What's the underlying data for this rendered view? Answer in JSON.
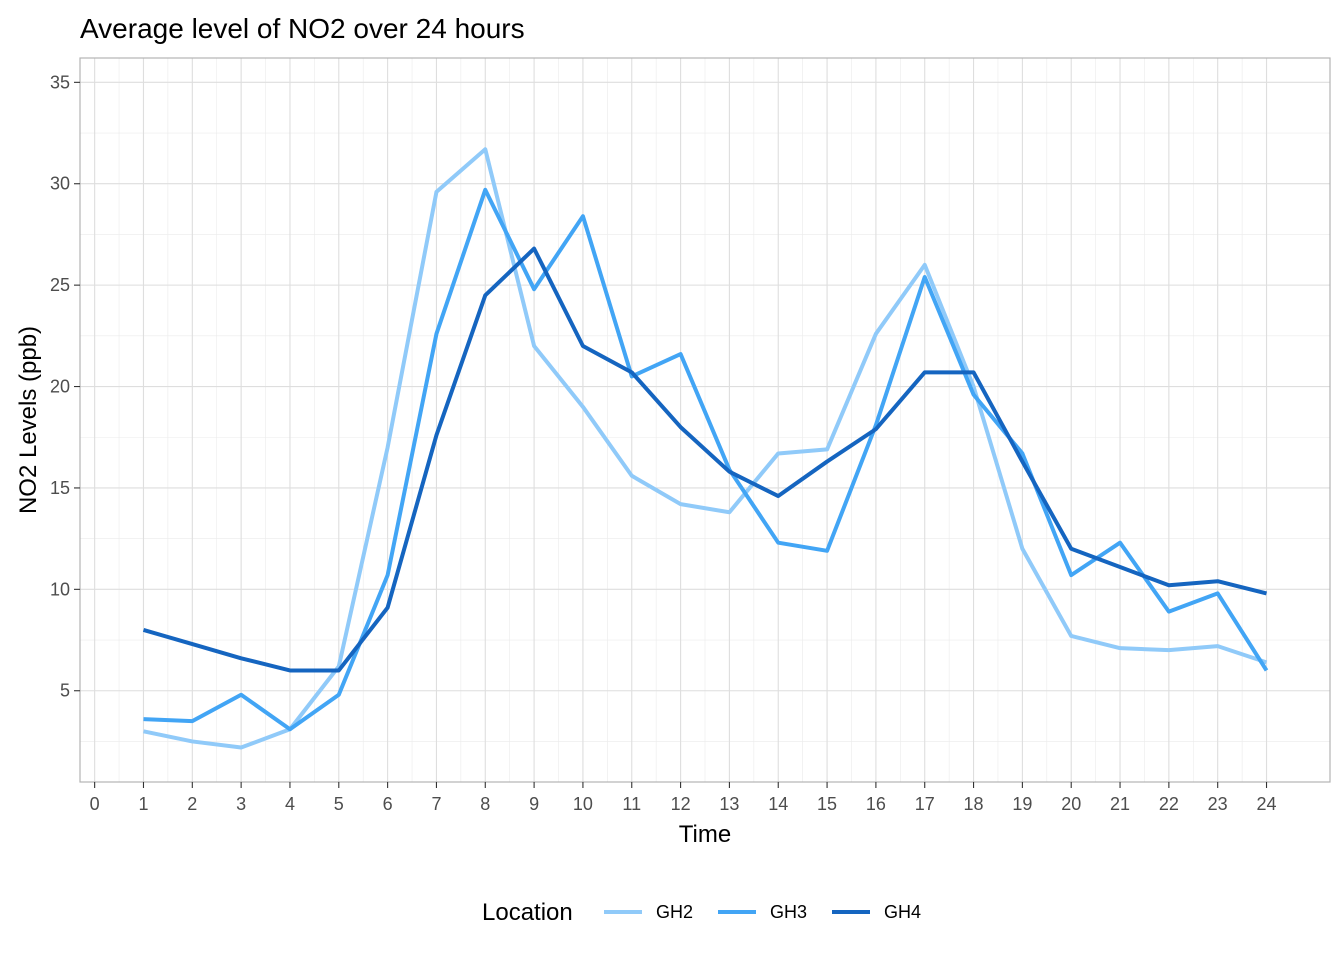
{
  "chart_data": {
    "type": "line",
    "title": "Average level of NO2 over 24 hours",
    "xlabel": "Time",
    "ylabel": "NO2 Levels (ppb)",
    "xlim": [
      -0.3,
      25.3
    ],
    "ylim": [
      0.5,
      36.2
    ],
    "x_ticks": [
      0,
      1,
      2,
      3,
      4,
      5,
      6,
      7,
      8,
      9,
      10,
      11,
      12,
      13,
      14,
      15,
      16,
      17,
      18,
      19,
      20,
      21,
      22,
      23,
      24
    ],
    "y_ticks": [
      5,
      10,
      15,
      20,
      25,
      30,
      35
    ],
    "grid": true,
    "legend": {
      "title": "Location",
      "placement": "bottom"
    },
    "x": [
      1,
      2,
      3,
      4,
      5,
      6,
      7,
      8,
      9,
      10,
      11,
      12,
      13,
      14,
      15,
      16,
      17,
      18,
      19,
      20,
      21,
      22,
      23,
      24
    ],
    "series": [
      {
        "name": "GH2",
        "color": "#90caf9",
        "values": [
          3.0,
          2.5,
          2.2,
          3.1,
          6.2,
          17.0,
          29.6,
          31.7,
          22.0,
          19.0,
          15.6,
          14.2,
          13.8,
          16.7,
          16.9,
          22.6,
          26.0,
          20.0,
          12.0,
          7.7,
          7.1,
          7.0,
          7.2,
          6.4
        ]
      },
      {
        "name": "GH3",
        "color": "#42a5f5",
        "values": [
          3.6,
          3.5,
          4.8,
          3.1,
          4.8,
          10.7,
          22.6,
          29.7,
          24.8,
          28.4,
          20.5,
          21.6,
          15.9,
          12.3,
          11.9,
          18.1,
          25.4,
          19.6,
          16.7,
          10.7,
          12.3,
          8.9,
          9.8,
          6.0
        ]
      },
      {
        "name": "GH4",
        "color": "#1565c0",
        "values": [
          8.0,
          7.3,
          6.6,
          6.0,
          6.0,
          9.1,
          17.6,
          24.5,
          26.8,
          22.0,
          20.7,
          18.0,
          15.8,
          14.6,
          16.3,
          17.9,
          20.7,
          20.7,
          16.3,
          12.0,
          11.1,
          10.2,
          10.4,
          9.8
        ]
      }
    ]
  }
}
